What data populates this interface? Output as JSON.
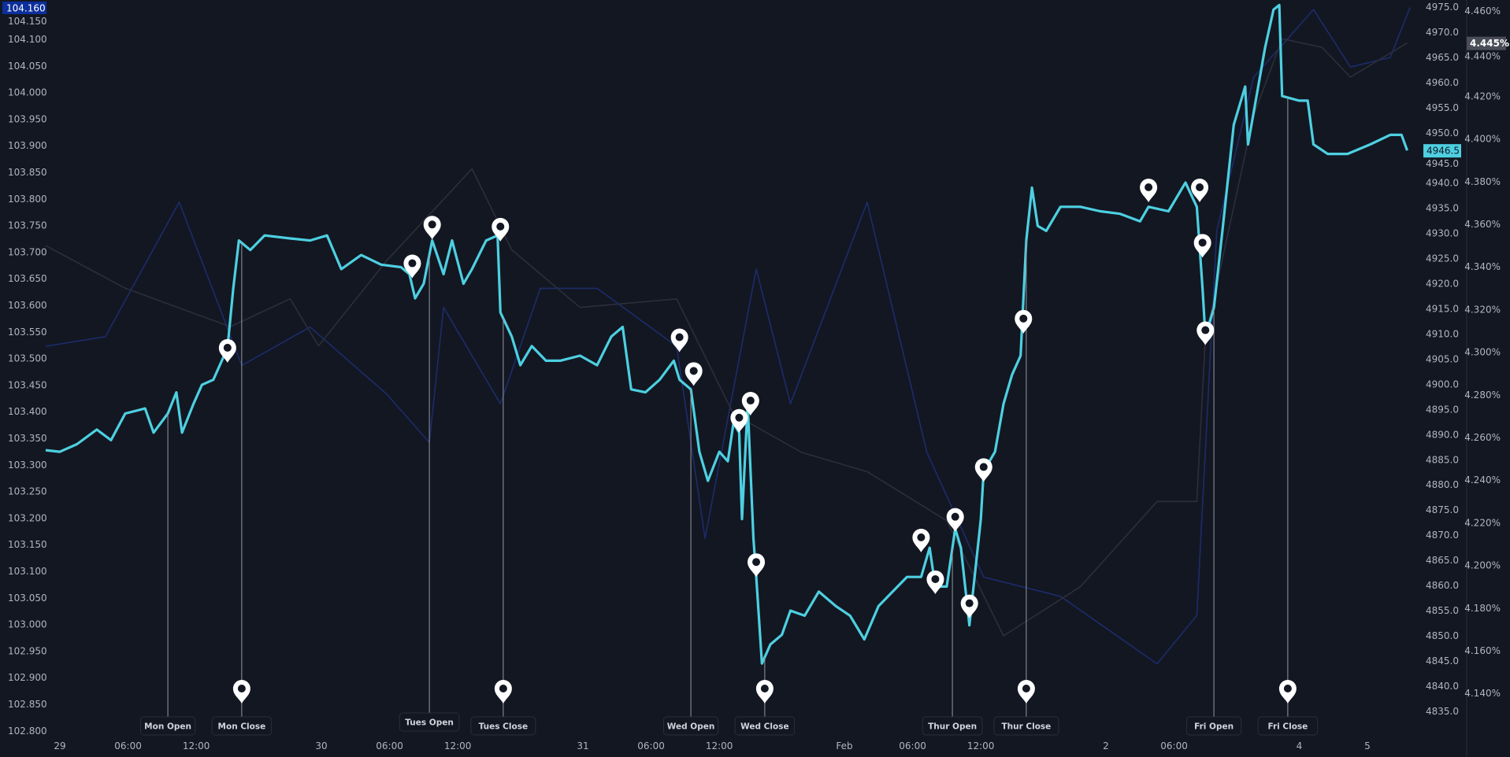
{
  "chart_data": {
    "type": "line",
    "title": "",
    "colors": {
      "background": "#131722",
      "main": "#4dd0e1",
      "dxy": "#1c2c6b",
      "yield": "#2c2f3b",
      "dxy_label": "#0c2f9c",
      "yield_label": "#4a4d57",
      "pin": "#ffffff"
    },
    "x_ticks": [
      {
        "label": "29",
        "time": "01-29 00:00"
      },
      {
        "label": "06:00",
        "time": "01-29 06:00"
      },
      {
        "label": "12:00",
        "time": "01-29 12:00"
      },
      {
        "label": "30",
        "time": "01-30 00:00"
      },
      {
        "label": "06:00",
        "time": "01-30 06:00"
      },
      {
        "label": "12:00",
        "time": "01-30 12:00"
      },
      {
        "label": "31",
        "time": "01-31 00:00"
      },
      {
        "label": "06:00",
        "time": "01-31 06:00"
      },
      {
        "label": "12:00",
        "time": "01-31 12:00"
      },
      {
        "label": "Feb",
        "time": "02-01 00:00"
      },
      {
        "label": "06:00",
        "time": "02-01 06:00"
      },
      {
        "label": "12:00",
        "time": "02-01 12:00"
      },
      {
        "label": "2",
        "time": "02-02 00:00"
      },
      {
        "label": "06:00",
        "time": "02-02 06:00"
      },
      {
        "label": "4",
        "time": "02-04 18:00"
      },
      {
        "label": "5",
        "time": "02-05 00:00"
      }
    ],
    "left_axis": {
      "range": [
        102.8,
        104.16
      ],
      "ticks": [
        "104.150",
        "104.100",
        "104.050",
        "104.000",
        "103.950",
        "103.900",
        "103.850",
        "103.800",
        "103.750",
        "103.700",
        "103.650",
        "103.600",
        "103.550",
        "103.500",
        "103.450",
        "103.400",
        "103.350",
        "103.300",
        "103.250",
        "103.200",
        "103.150",
        "103.100",
        "103.050",
        "103.000",
        "102.950",
        "102.900",
        "102.850",
        "102.800"
      ],
      "current": "104.160"
    },
    "price_axis": {
      "range": [
        4835,
        4975
      ],
      "ticks": [
        "4975.0",
        "4970.0",
        "4965.0",
        "4960.0",
        "4955.0",
        "4950.0",
        "4945.0",
        "4940.0",
        "4935.0",
        "4930.0",
        "4925.0",
        "4920.0",
        "4915.0",
        "4910.0",
        "4905.0",
        "4900.0",
        "4895.0",
        "4890.0",
        "4885.0",
        "4880.0",
        "4875.0",
        "4870.0",
        "4865.0",
        "4860.0",
        "4855.0",
        "4850.0",
        "4845.0",
        "4840.0",
        "4835.0"
      ],
      "current": "4946.5"
    },
    "percent_axis": {
      "range": [
        4.14,
        4.46
      ],
      "ticks": [
        "4.460%",
        "4.440%",
        "4.420%",
        "4.400%",
        "4.380%",
        "4.360%",
        "4.340%",
        "4.320%",
        "4.300%",
        "4.280%",
        "4.260%",
        "4.240%",
        "4.220%",
        "4.200%",
        "4.180%",
        "4.160%",
        "4.140%"
      ],
      "current": "4.445%"
    },
    "series": [
      {
        "axis": "price",
        "points": [
          [
            "01-28 22:45",
            4886.9
          ],
          [
            "01-29 00:00",
            4886.6
          ],
          [
            "01-29 01:30",
            4888.1
          ],
          [
            "01-29 03:15",
            4891.0
          ],
          [
            "01-29 04:30",
            4888.9
          ],
          [
            "01-29 05:45",
            4894.2
          ],
          [
            "01-29 07:30",
            4895.2
          ],
          [
            "01-29 08:15",
            4890.4
          ],
          [
            "01-29 09:30",
            4894.2
          ],
          [
            "01-29 10:15",
            4898.4
          ],
          [
            "01-29 10:45",
            4890.4
          ],
          [
            "01-29 11:45",
            4896.1
          ],
          [
            "01-29 12:30",
            4899.9
          ],
          [
            "01-29 13:30",
            4900.9
          ],
          [
            "01-29 14:15",
            4904.7
          ],
          [
            "01-29 14:45",
            4907.2
          ],
          [
            "01-29 15:15",
            4919.0
          ],
          [
            "01-29 15:45",
            4928.6
          ],
          [
            "01-29 16:45",
            4926.7
          ],
          [
            "01-29 19:00",
            4929.6
          ],
          [
            "01-29 21:15",
            4929.0
          ],
          [
            "01-29 23:00",
            4928.6
          ],
          [
            "01-30 00:30",
            4929.6
          ],
          [
            "01-30 01:45",
            4922.9
          ],
          [
            "01-30 03:30",
            4925.7
          ],
          [
            "01-30 05:15",
            4923.8
          ],
          [
            "01-30 07:00",
            4923.3
          ],
          [
            "01-30 07:45",
            4921.9
          ],
          [
            "01-30 08:15",
            4917.1
          ],
          [
            "01-30 09:00",
            4920.0
          ],
          [
            "01-30 09:45",
            4928.6
          ],
          [
            "01-30 10:45",
            4921.9
          ],
          [
            "01-30 11:30",
            4928.6
          ],
          [
            "01-30 12:30",
            4920.0
          ],
          [
            "01-30 13:15",
            4922.9
          ],
          [
            "01-30 14:30",
            4928.6
          ],
          [
            "01-30 15:30",
            4929.6
          ],
          [
            "01-30 15:45",
            4914.3
          ],
          [
            "01-30 16:45",
            4909.5
          ],
          [
            "01-30 18:30",
            4903.8
          ],
          [
            "01-30 19:30",
            4907.6
          ],
          [
            "01-30 20:45",
            4904.7
          ],
          [
            "01-30 22:00",
            4904.7
          ],
          [
            "01-30 23:45",
            4905.7
          ],
          [
            "01-31 01:15",
            4903.8
          ],
          [
            "01-31 02:30",
            4909.5
          ],
          [
            "01-31 03:30",
            4911.4
          ],
          [
            "01-31 04:15",
            4899.0
          ],
          [
            "01-31 05:30",
            4898.4
          ],
          [
            "01-31 06:45",
            4900.9
          ],
          [
            "01-31 08:00",
            4904.7
          ],
          [
            "01-31 08:30",
            4900.9
          ],
          [
            "01-31 09:30",
            4899.0
          ],
          [
            "01-31 10:15",
            4886.6
          ],
          [
            "01-31 11:00",
            4880.8
          ],
          [
            "01-31 12:00",
            4886.6
          ],
          [
            "01-31 12:45",
            4884.7
          ],
          [
            "01-31 13:15",
            4892.3
          ],
          [
            "01-31 13:45",
            4890.4
          ],
          [
            "01-31 14:00",
            4873.2
          ],
          [
            "01-31 14:30",
            4896.1
          ],
          [
            "01-31 15:00",
            4869.4
          ],
          [
            "01-31 15:15",
            4861.7
          ],
          [
            "01-31 15:45",
            4844.5
          ],
          [
            "01-31 16:30",
            4848.3
          ],
          [
            "01-31 18:30",
            4850.2
          ],
          [
            "01-31 19:15",
            4855.0
          ],
          [
            "01-31 20:30",
            4854.0
          ],
          [
            "01-31 21:45",
            4858.8
          ],
          [
            "01-31 23:15",
            4855.9
          ],
          [
            "02-01 00:30",
            4854.0
          ],
          [
            "02-01 01:45",
            4849.3
          ],
          [
            "02-01 03:00",
            4855.9
          ],
          [
            "02-01 04:15",
            4858.8
          ],
          [
            "02-01 05:30",
            4861.7
          ],
          [
            "02-01 06:45",
            4861.7
          ],
          [
            "02-01 07:30",
            4867.5
          ],
          [
            "02-01 08:00",
            4859.8
          ],
          [
            "02-01 09:00",
            4859.8
          ],
          [
            "02-01 09:45",
            4871.3
          ],
          [
            "02-01 10:15",
            4867.5
          ],
          [
            "02-01 11:00",
            4852.1
          ],
          [
            "02-01 12:00",
            4873.2
          ],
          [
            "02-01 12:15",
            4882.7
          ],
          [
            "02-01 13:15",
            4886.6
          ],
          [
            "02-01 14:00",
            4896.1
          ],
          [
            "02-01 14:45",
            4901.9
          ],
          [
            "02-01 15:30",
            4905.7
          ],
          [
            "02-01 16:00",
            4928.6
          ],
          [
            "02-01 16:30",
            4939.1
          ],
          [
            "02-01 18:00",
            4931.5
          ],
          [
            "02-01 18:45",
            4930.5
          ],
          [
            "02-01 20:00",
            4935.3
          ],
          [
            "02-01 21:45",
            4935.3
          ],
          [
            "02-01 23:30",
            4934.4
          ],
          [
            "02-02 01:15",
            4933.9
          ],
          [
            "02-02 03:00",
            4932.4
          ],
          [
            "02-02 03:45",
            4935.3
          ],
          [
            "02-02 05:30",
            4934.4
          ],
          [
            "02-02 07:00",
            4940.1
          ],
          [
            "02-02 08:00",
            4935.3
          ],
          [
            "02-02 08:30",
            4919.0
          ],
          [
            "02-02 08:45",
            4909.5
          ],
          [
            "02-02 09:30",
            4915.2
          ],
          [
            "02-02 10:15",
            4930.5
          ],
          [
            "02-02 11:15",
            4951.6
          ],
          [
            "02-02 12:15",
            4959.2
          ],
          [
            "02-02 12:30",
            4947.7
          ],
          [
            "02-02 14:00",
            4966.9
          ],
          [
            "02-02 14:45",
            4974.5
          ],
          [
            "02-02 15:15",
            4975.4
          ],
          [
            "02-02 15:30",
            4957.3
          ],
          [
            "02-02 17:00",
            4956.4
          ],
          [
            "02-04 18:45",
            4956.4
          ],
          [
            "02-04 19:15",
            4947.7
          ],
          [
            "02-04 20:30",
            4945.8
          ],
          [
            "02-04 22:15",
            4945.8
          ],
          [
            "02-05 00:15",
            4947.7
          ],
          [
            "02-05 02:00",
            4949.6
          ],
          [
            "02-05 03:00",
            4949.6
          ],
          [
            "02-05 03:30",
            4946.5
          ]
        ]
      },
      {
        "axis": "left",
        "points": [
          [
            "01-28 22:45",
            103.523
          ],
          [
            "01-29 04:00",
            103.541
          ],
          [
            "01-29 10:30",
            103.794
          ],
          [
            "01-29 16:00",
            103.487
          ],
          [
            "01-29 23:00",
            103.559
          ],
          [
            "01-30 05:45",
            103.433
          ],
          [
            "01-30 09:30",
            103.342
          ],
          [
            "01-30 10:45",
            103.596
          ],
          [
            "01-30 15:45",
            103.415
          ],
          [
            "01-30 20:15",
            103.632
          ],
          [
            "01-31 01:15",
            103.632
          ],
          [
            "01-31 08:15",
            103.523
          ],
          [
            "01-31 10:45",
            103.162
          ],
          [
            "01-31 15:15",
            103.668
          ],
          [
            "01-31 19:15",
            103.415
          ],
          [
            "02-01 02:00",
            103.794
          ],
          [
            "02-01 07:15",
            103.324
          ],
          [
            "02-01 12:15",
            103.089
          ],
          [
            "02-01 20:00",
            103.053
          ],
          [
            "02-02 04:30",
            102.926
          ],
          [
            "02-02 08:00",
            103.017
          ],
          [
            "02-02 09:45",
            103.74
          ],
          [
            "02-02 13:00",
            104.029
          ],
          [
            "02-04 19:15",
            104.156
          ],
          [
            "02-04 22:30",
            104.048
          ],
          [
            "02-05 02:00",
            104.066
          ],
          [
            "02-05 03:45",
            104.16
          ]
        ]
      },
      {
        "axis": "percent",
        "points": [
          [
            "01-28 22:45",
            4.35
          ],
          [
            "01-29 05:45",
            4.33
          ],
          [
            "01-29 15:00",
            4.312
          ],
          [
            "01-29 21:15",
            4.325
          ],
          [
            "01-29 23:45",
            4.303
          ],
          [
            "01-30 05:45",
            4.343
          ],
          [
            "01-30 13:15",
            4.386
          ],
          [
            "01-30 16:45",
            4.348
          ],
          [
            "01-30 23:45",
            4.321
          ],
          [
            "01-31 08:15",
            4.325
          ],
          [
            "01-31 13:15",
            4.271
          ],
          [
            "01-31 20:15",
            4.253
          ],
          [
            "02-01 02:00",
            4.244
          ],
          [
            "02-01 09:00",
            4.221
          ],
          [
            "02-01 14:00",
            4.167
          ],
          [
            "02-01 21:45",
            4.19
          ],
          [
            "02-02 04:30",
            4.23
          ],
          [
            "02-02 08:00",
            4.23
          ],
          [
            "02-02 08:45",
            4.307
          ],
          [
            "02-02 13:00",
            4.411
          ],
          [
            "02-02 15:30",
            4.447
          ],
          [
            "02-04 20:00",
            4.443
          ],
          [
            "02-04 22:30",
            4.429
          ],
          [
            "02-05 03:30",
            4.445
          ]
        ]
      }
    ],
    "session_markers": [
      {
        "label": "Mon Open",
        "time": "01-29 09:30",
        "pin": false
      },
      {
        "label": "Mon Close",
        "time": "01-29 16:00",
        "pin": true
      },
      {
        "label": "Tues Open",
        "time": "01-30 09:30",
        "pin": false
      },
      {
        "label": "Tues Close",
        "time": "01-30 16:00",
        "pin": true
      },
      {
        "label": "Wed Open",
        "time": "01-31 09:30",
        "pin": false
      },
      {
        "label": "Wed Close",
        "time": "01-31 16:00",
        "pin": true
      },
      {
        "label": "Thur Open",
        "time": "02-01 09:30",
        "pin": false
      },
      {
        "label": "Thur Close",
        "time": "02-01 16:00",
        "pin": true
      },
      {
        "label": "Fri Open",
        "time": "02-02 09:30",
        "pin": false
      },
      {
        "label": "Fri Close",
        "time": "02-02 16:00",
        "pin": true
      }
    ],
    "event_pins": [
      [
        "01-29 14:45",
        4904.3
      ],
      [
        "01-30 08:00",
        4921.1
      ],
      [
        "01-30 09:45",
        4928.8
      ],
      [
        "01-30 15:45",
        4928.4
      ],
      [
        "01-31 08:30",
        4906.4
      ],
      [
        "01-31 09:45",
        4899.7
      ],
      [
        "01-31 13:45",
        4890.4
      ],
      [
        "01-31 14:45",
        4893.8
      ],
      [
        "01-31 15:15",
        4861.7
      ],
      [
        "02-01 06:45",
        4866.6
      ],
      [
        "02-01 08:00",
        4858.3
      ],
      [
        "02-01 09:45",
        4870.7
      ],
      [
        "02-01 11:00",
        4853.5
      ],
      [
        "02-01 12:15",
        4880.6
      ],
      [
        "02-01 15:45",
        4910.1
      ],
      [
        "02-02 03:45",
        4936.2
      ],
      [
        "02-02 08:15",
        4936.2
      ],
      [
        "02-02 08:30",
        4925.2
      ],
      [
        "02-02 08:45",
        4907.8
      ]
    ]
  }
}
